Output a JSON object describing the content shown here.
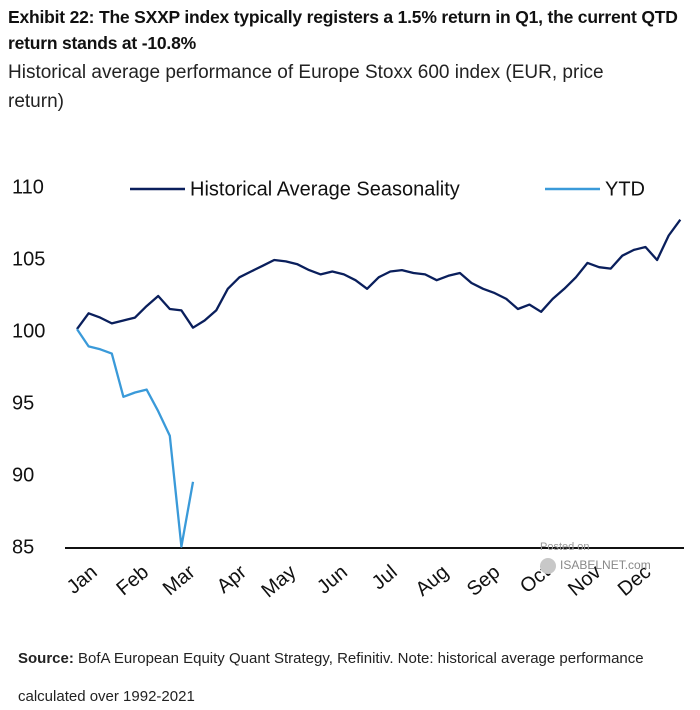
{
  "header": {
    "title": "Exhibit 22: The SXXP index typically registers a 1.5% return in Q1, the current QTD return stands at -10.8%",
    "subtitle": "Historical average performance of Europe Stoxx 600 index (EUR, price return)"
  },
  "chart_data": {
    "type": "line",
    "x": [
      0,
      7,
      14,
      21,
      28,
      35,
      42,
      49,
      56,
      63,
      70,
      77,
      84,
      91,
      98,
      105,
      112,
      119,
      126,
      133,
      140,
      147,
      154,
      161,
      168,
      175,
      182,
      189,
      196,
      203,
      210,
      217,
      224,
      231,
      238,
      245,
      252,
      259,
      266,
      273,
      280,
      287,
      294,
      301,
      308,
      315,
      322,
      329,
      336,
      343,
      350,
      357,
      364
    ],
    "series": [
      {
        "name": "Historical Average Seasonality",
        "color": "#0a1f5c",
        "values": [
          100.2,
          101.3,
          101.0,
          100.6,
          100.8,
          101.0,
          101.8,
          102.5,
          101.6,
          101.5,
          100.3,
          100.8,
          101.5,
          103.0,
          103.8,
          104.2,
          104.6,
          105.0,
          104.9,
          104.7,
          104.3,
          104.0,
          104.2,
          104.0,
          103.6,
          103.0,
          103.8,
          104.2,
          104.3,
          104.1,
          104.0,
          103.6,
          103.9,
          104.1,
          103.4,
          103.0,
          102.7,
          102.3,
          101.6,
          101.9,
          101.4,
          102.3,
          103.0,
          103.8,
          104.8,
          104.5,
          104.4,
          105.3,
          105.7,
          105.9,
          105.0,
          106.7,
          107.8
        ]
      },
      {
        "name": "YTD",
        "color": "#3a9ad9",
        "values": [
          100.2,
          99.0,
          98.8,
          98.5,
          95.5,
          95.8,
          96.0,
          94.5,
          92.8,
          85.1,
          89.6,
          null,
          null,
          null,
          null,
          null,
          null,
          null,
          null,
          null,
          null,
          null,
          null,
          null,
          null,
          null,
          null,
          null,
          null,
          null,
          null,
          null,
          null,
          null,
          null,
          null,
          null,
          null,
          null,
          null,
          null,
          null,
          null,
          null,
          null,
          null,
          null,
          null,
          null,
          null,
          null,
          null,
          null
        ]
      }
    ],
    "xlim": [
      0,
      365
    ],
    "xticks": [
      {
        "value": 0,
        "label": "Jan"
      },
      {
        "value": 31,
        "label": "Feb"
      },
      {
        "value": 59,
        "label": "Mar"
      },
      {
        "value": 90,
        "label": "Apr"
      },
      {
        "value": 120,
        "label": "May"
      },
      {
        "value": 151,
        "label": "Jun"
      },
      {
        "value": 181,
        "label": "Jul"
      },
      {
        "value": 212,
        "label": "Aug"
      },
      {
        "value": 243,
        "label": "Sep"
      },
      {
        "value": 273,
        "label": "Oct"
      },
      {
        "value": 304,
        "label": "Nov"
      },
      {
        "value": 334,
        "label": "Dec"
      }
    ],
    "ylim": [
      85,
      110
    ],
    "yticks": [
      85,
      90,
      95,
      100,
      105,
      110
    ],
    "grid": false,
    "legend": "top"
  },
  "watermark": [
    "Posted on",
    "ISABELNET.com"
  ],
  "footer": {
    "source_label": "Source:",
    "source_text": "BofA European Equity Quant Strategy, Refinitiv. Note: historical average performance calculated over 1992-2021"
  }
}
